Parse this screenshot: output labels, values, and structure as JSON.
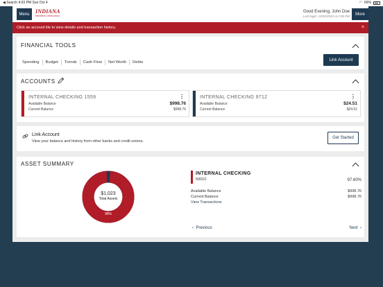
{
  "status_bar": {
    "left": "◀ Search  4:03 PM  Sun Oct 4",
    "battery": "66%"
  },
  "header": {
    "menu_label": "Menu",
    "logo_line1": "INDIANA",
    "logo_line2": "Members Credit Union",
    "greeting": "Good Evening, John Doe",
    "last_login": "Last login: 10/02/2020 at 2:00 PM",
    "more_label": "More"
  },
  "alert": {
    "message": "Click an account tile to view details and transaction history.",
    "close": "×"
  },
  "financial_tools": {
    "title": "FINANCIAL TOOLS",
    "links": [
      "Spending",
      "Budget",
      "Trends",
      "Cash Flow",
      "Net Worth",
      "Debts"
    ],
    "button": "Link Account"
  },
  "accounts": {
    "title": "ACCOUNTS",
    "items": [
      {
        "name": "INTERNAL CHECKING 1559",
        "available_label": "Available Balance",
        "available": "$998.76",
        "current_label": "Current Balance",
        "current": "$998.76",
        "color": "#b01c27"
      },
      {
        "name": "INTERNAL CHECKING 9712",
        "available_label": "Available Balance",
        "available": "$24.51",
        "current_label": "Current Balance",
        "current": "$24.51",
        "color": "#1e3a51"
      }
    ]
  },
  "link_account": {
    "title": "Link Account",
    "description": "View your balance and history from other banks and credit unions.",
    "button": "Get Started"
  },
  "asset_summary": {
    "title": "ASSET SUMMARY",
    "total_value": "$1,023",
    "total_label": "Total Assets",
    "donut_label": "98%",
    "share": 0.976,
    "colors": {
      "primary": "#b01c27",
      "secondary": "#1e3a51"
    },
    "account_name": "INTERNAL CHECKING",
    "account_number": "50010",
    "account_pct": "97.60%",
    "available_label": "Available Balance",
    "available": "$998.76",
    "current_label": "Current Balance",
    "current": "$998.76",
    "view_transactions": "View Transactions",
    "previous": "Previous",
    "next": "Next"
  }
}
